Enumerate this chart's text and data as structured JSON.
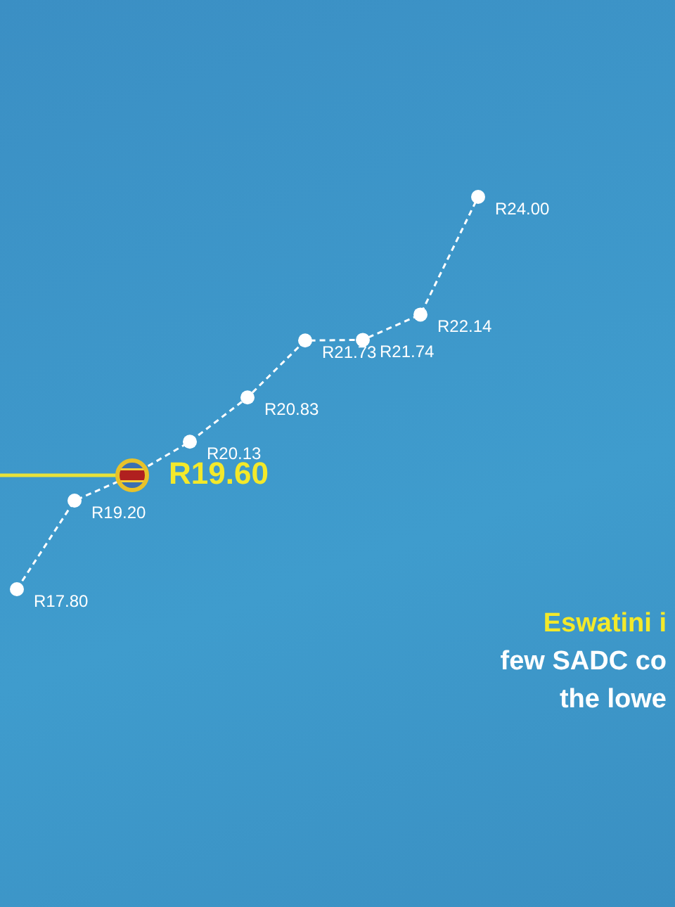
{
  "chart_data": {
    "type": "line",
    "categories": [
      null,
      null,
      null,
      null,
      null,
      null,
      null,
      null,
      null
    ],
    "series": [
      {
        "color": "#ffffff",
        "values": [
          17.8,
          19.2,
          19.6,
          20.13,
          20.83,
          21.73,
          21.74,
          22.14,
          24.0
        ],
        "value_labels": [
          "R17.80",
          "R19.20",
          "R19.60",
          "R20.13",
          "R20.83",
          "R21.73",
          "R21.74",
          "R22.14",
          "R24.00"
        ]
      }
    ],
    "marker": "circle",
    "line_style": "dashed",
    "legend": false,
    "grid": false,
    "tick_labels": false,
    "ref_lines": [
      {
        "axis": "y",
        "value": 19.6,
        "color": "#e8e23a"
      }
    ],
    "annotations": [
      "Eswatini i",
      "few SADC co",
      "the lowe"
    ]
  }
}
